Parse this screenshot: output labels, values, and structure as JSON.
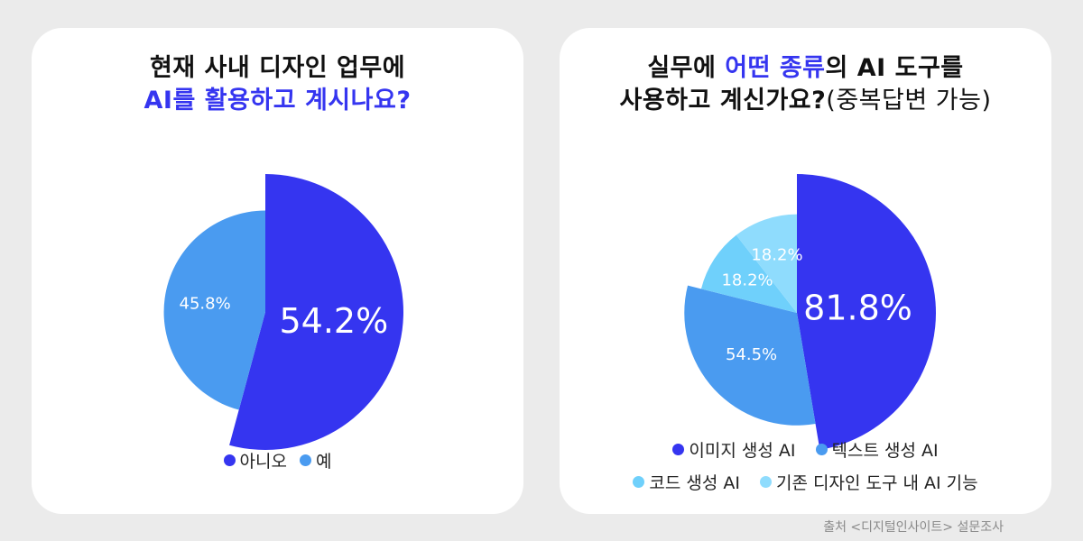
{
  "colors": {
    "background": "#ebebeb",
    "card": "#ffffff",
    "highlight": "#3535f0",
    "dark_blue": "#3535f0",
    "mid_blue": "#4a9bf0",
    "light_blue": "#6fd0fb",
    "lighter_blue": "#8fdcfd"
  },
  "left": {
    "title_line1": "현재 사내 디자인 업무에",
    "title_line2_highlight": "AI를 활용하고 계시나요?",
    "legend": [
      {
        "label": "아니오",
        "color": "#3535f0"
      },
      {
        "label": "예",
        "color": "#4a9bf0"
      }
    ]
  },
  "right": {
    "title_line1_a": "실무에 ",
    "title_line1_highlight": "어떤 종류",
    "title_line1_b": "의 AI 도구를",
    "title_line2_a": "사용하고 계신가요?",
    "title_line2_b": "(중복답변 가능)",
    "legend_row1": [
      {
        "label": "이미지 생성 AI",
        "color": "#3535f0"
      },
      {
        "label": "텍스트 생성 AI",
        "color": "#4a9bf0"
      }
    ],
    "legend_row2": [
      {
        "label": "코드 생성 AI",
        "color": "#6fd0fb"
      },
      {
        "label": "기존 디자인 도구 내 AI 기능",
        "color": "#8fdcfd"
      }
    ]
  },
  "source": "출처 <디지털인사이트> 설문조사",
  "chart_data": [
    {
      "type": "pie",
      "title": "현재 사내 디자인 업무에 AI를 활용하고 계시나요?",
      "slices": [
        {
          "label": "아니오",
          "value": 54.2,
          "display": "54.2%",
          "color": "#3535f0",
          "radius_scale": 1.0
        },
        {
          "label": "예",
          "value": 45.8,
          "display": "45.8%",
          "color": "#4a9bf0",
          "radius_scale": 0.735
        }
      ]
    },
    {
      "type": "pie",
      "title": "실무에 어떤 종류의 AI 도구를 사용하고 계신가요?(중복답변 가능)",
      "slices": [
        {
          "label": "이미지 생성 AI",
          "value": 81.8,
          "display": "81.8%",
          "color": "#3535f0",
          "radius_scale": 1.0
        },
        {
          "label": "텍스트 생성 AI",
          "value": 54.5,
          "display": "54.5%",
          "color": "#4a9bf0",
          "radius_scale": 0.81
        },
        {
          "label": "코드 생성 AI",
          "value": 18.2,
          "display": "18.2%",
          "color": "#6fd0fb",
          "radius_scale": 0.71
        },
        {
          "label": "기존 디자인 도구 내 AI 기능",
          "value": 18.2,
          "display": "18.2%",
          "color": "#8fdcfd",
          "radius_scale": 0.71
        }
      ]
    }
  ]
}
